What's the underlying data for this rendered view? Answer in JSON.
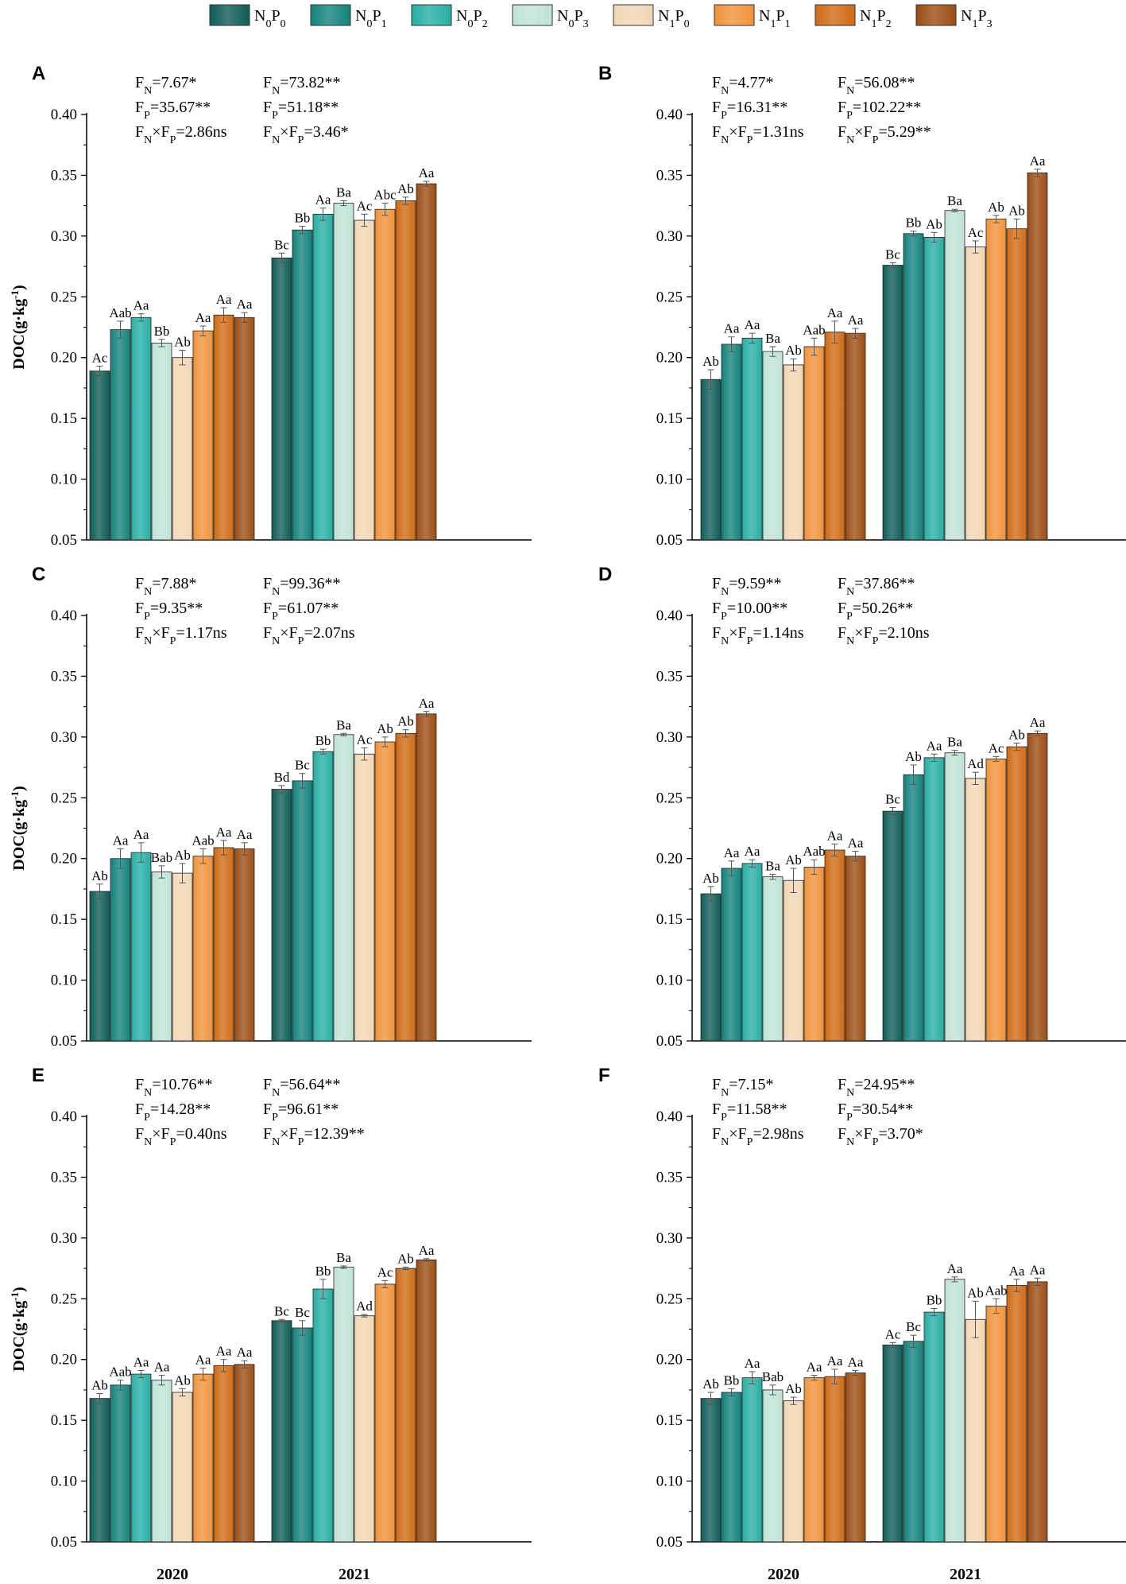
{
  "legend": [
    {
      "n": "0",
      "p": "0",
      "color": "#0f5c57"
    },
    {
      "n": "0",
      "p": "1",
      "color": "#13827c"
    },
    {
      "n": "0",
      "p": "2",
      "color": "#26aea4"
    },
    {
      "n": "0",
      "p": "3",
      "color": "#bfe3d4"
    },
    {
      "n": "1",
      "p": "0",
      "color": "#f2d6b3"
    },
    {
      "n": "1",
      "p": "1",
      "color": "#f0923a"
    },
    {
      "n": "1",
      "p": "2",
      "color": "#cf6a14"
    },
    {
      "n": "1",
      "p": "3",
      "color": "#9b4d13"
    }
  ],
  "chart_data": [
    {
      "type": "bar",
      "panel": "A",
      "ylabel": "DOC(g·kg-1)",
      "ylim": [
        0.05,
        0.4
      ],
      "yticks": [
        "0.05",
        "0.10",
        "0.15",
        "0.20",
        "0.25",
        "0.30",
        "0.35",
        "0.40"
      ],
      "categories": [
        "2020",
        "2021"
      ],
      "series_names": [
        "N0P0",
        "N0P1",
        "N0P2",
        "N0P3",
        "N1P0",
        "N1P1",
        "N1P2",
        "N1P3"
      ],
      "values": [
        [
          0.189,
          0.223,
          0.233,
          0.212,
          0.2,
          0.222,
          0.235,
          0.233
        ],
        [
          0.282,
          0.305,
          0.318,
          0.327,
          0.313,
          0.322,
          0.329,
          0.343
        ]
      ],
      "errors": [
        [
          0.004,
          0.007,
          0.003,
          0.003,
          0.006,
          0.004,
          0.006,
          0.004
        ],
        [
          0.004,
          0.003,
          0.005,
          0.002,
          0.005,
          0.005,
          0.003,
          0.002
        ]
      ],
      "sig": [
        [
          "Ac",
          "Aab",
          "Aa",
          "Bb",
          "Ab",
          "Aa",
          "Aa",
          "Aa"
        ],
        [
          "Bc",
          "Bb",
          "Aa",
          "Ba",
          "Ac",
          "Abc",
          "Ab",
          "Aa"
        ]
      ],
      "stats": [
        [
          {
            "sub": "N",
            "val": "=7.67*"
          },
          {
            "sub": "P",
            "val": "=35.67**"
          },
          {
            "sub": "N",
            "sub2": "P",
            "val": "=2.86ns"
          }
        ],
        [
          {
            "sub": "N",
            "val": "=73.82**"
          },
          {
            "sub": "P",
            "val": "=51.18**"
          },
          {
            "sub": "N",
            "sub2": "P",
            "val": "=3.46*"
          }
        ]
      ]
    },
    {
      "type": "bar",
      "panel": "B",
      "ylabel": "",
      "ylim": [
        0.05,
        0.4
      ],
      "yticks": [
        "0.05",
        "0.10",
        "0.15",
        "0.20",
        "0.25",
        "0.30",
        "0.35",
        "0.40"
      ],
      "categories": [
        "2020",
        "2021"
      ],
      "series_names": [
        "N0P0",
        "N0P1",
        "N0P2",
        "N0P3",
        "N1P0",
        "N1P1",
        "N1P2",
        "N1P3"
      ],
      "values": [
        [
          0.182,
          0.211,
          0.216,
          0.205,
          0.194,
          0.209,
          0.221,
          0.22
        ],
        [
          0.276,
          0.302,
          0.299,
          0.321,
          0.291,
          0.314,
          0.306,
          0.352
        ]
      ],
      "errors": [
        [
          0.008,
          0.006,
          0.004,
          0.004,
          0.005,
          0.007,
          0.009,
          0.004
        ],
        [
          0.002,
          0.002,
          0.004,
          0.001,
          0.005,
          0.003,
          0.008,
          0.003
        ]
      ],
      "sig": [
        [
          "Ab",
          "Aa",
          "Aa",
          "Ba",
          "Ab",
          "Aab",
          "Aa",
          "Aa"
        ],
        [
          "Bc",
          "Bb",
          "Ab",
          "Ba",
          "Ac",
          "Ab",
          "Ab",
          "Aa"
        ]
      ],
      "stats": [
        [
          {
            "sub": "N",
            "val": "=4.77*"
          },
          {
            "sub": "P",
            "val": "=16.31**"
          },
          {
            "sub": "N",
            "sub2": "P",
            "val": "=1.31ns"
          }
        ],
        [
          {
            "sub": "N",
            "val": "=56.08**"
          },
          {
            "sub": "P",
            "val": "=102.22**"
          },
          {
            "sub": "N",
            "sub2": "P",
            "val": "=5.29**"
          }
        ]
      ]
    },
    {
      "type": "bar",
      "panel": "C",
      "ylabel": "DOC(g·kg-1)",
      "ylim": [
        0.05,
        0.4
      ],
      "yticks": [
        "0.05",
        "0.10",
        "0.15",
        "0.20",
        "0.25",
        "0.30",
        "0.35",
        "0.40"
      ],
      "categories": [
        "2020",
        "2021"
      ],
      "series_names": [
        "N0P0",
        "N0P1",
        "N0P2",
        "N0P3",
        "N1P0",
        "N1P1",
        "N1P2",
        "N1P3"
      ],
      "values": [
        [
          0.173,
          0.2,
          0.205,
          0.189,
          0.188,
          0.202,
          0.209,
          0.208
        ],
        [
          0.257,
          0.264,
          0.288,
          0.302,
          0.286,
          0.296,
          0.303,
          0.319
        ]
      ],
      "errors": [
        [
          0.006,
          0.008,
          0.008,
          0.005,
          0.008,
          0.006,
          0.006,
          0.005
        ],
        [
          0.003,
          0.006,
          0.002,
          0.001,
          0.005,
          0.004,
          0.003,
          0.002
        ]
      ],
      "sig": [
        [
          "Ab",
          "Aa",
          "Aa",
          "Bab",
          "Ab",
          "Aab",
          "Aa",
          "Aa"
        ],
        [
          "Bd",
          "Bc",
          "Bb",
          "Ba",
          "Ac",
          "Ab",
          "Ab",
          "Aa"
        ]
      ],
      "stats": [
        [
          {
            "sub": "N",
            "val": "=7.88*"
          },
          {
            "sub": "P",
            "val": "=9.35**"
          },
          {
            "sub": "N",
            "sub2": "P",
            "val": "=1.17ns"
          }
        ],
        [
          {
            "sub": "N",
            "val": "=99.36**"
          },
          {
            "sub": "P",
            "val": "=61.07**"
          },
          {
            "sub": "N",
            "sub2": "P",
            "val": "=2.07ns"
          }
        ]
      ]
    },
    {
      "type": "bar",
      "panel": "D",
      "ylabel": "",
      "ylim": [
        0.05,
        0.4
      ],
      "yticks": [
        "0.05",
        "0.10",
        "0.15",
        "0.20",
        "0.25",
        "0.30",
        "0.35",
        "0.40"
      ],
      "categories": [
        "2020",
        "2021"
      ],
      "series_names": [
        "N0P0",
        "N0P1",
        "N0P2",
        "N0P3",
        "N1P0",
        "N1P1",
        "N1P2",
        "N1P3"
      ],
      "values": [
        [
          0.171,
          0.192,
          0.196,
          0.185,
          0.182,
          0.193,
          0.207,
          0.202
        ],
        [
          0.239,
          0.269,
          0.283,
          0.287,
          0.266,
          0.282,
          0.292,
          0.303
        ]
      ],
      "errors": [
        [
          0.006,
          0.006,
          0.003,
          0.002,
          0.01,
          0.006,
          0.005,
          0.004
        ],
        [
          0.003,
          0.008,
          0.003,
          0.002,
          0.005,
          0.002,
          0.003,
          0.002
        ]
      ],
      "sig": [
        [
          "Ab",
          "Aa",
          "Aa",
          "Ba",
          "Ab",
          "Aab",
          "Aa",
          "Aa"
        ],
        [
          "Bc",
          "Ab",
          "Aa",
          "Ba",
          "Ad",
          "Ac",
          "Ab",
          "Aa"
        ]
      ],
      "stats": [
        [
          {
            "sub": "N",
            "val": "=9.59**"
          },
          {
            "sub": "P",
            "val": "=10.00**"
          },
          {
            "sub": "N",
            "sub2": "P",
            "val": "=1.14ns"
          }
        ],
        [
          {
            "sub": "N",
            "val": "=37.86**"
          },
          {
            "sub": "P",
            "val": "=50.26**"
          },
          {
            "sub": "N",
            "sub2": "P",
            "val": "=2.10ns"
          }
        ]
      ]
    },
    {
      "type": "bar",
      "panel": "E",
      "ylabel": "DOC(g·kg-1)",
      "ylim": [
        0.05,
        0.4
      ],
      "yticks": [
        "0.05",
        "0.10",
        "0.15",
        "0.20",
        "0.25",
        "0.30",
        "0.35",
        "0.40"
      ],
      "categories": [
        "2020",
        "2021"
      ],
      "series_names": [
        "N0P0",
        "N0P1",
        "N0P2",
        "N0P3",
        "N1P0",
        "N1P1",
        "N1P2",
        "N1P3"
      ],
      "values": [
        [
          0.168,
          0.179,
          0.188,
          0.183,
          0.173,
          0.188,
          0.195,
          0.196
        ],
        [
          0.232,
          0.226,
          0.258,
          0.276,
          0.236,
          0.262,
          0.275,
          0.282
        ]
      ],
      "errors": [
        [
          0.004,
          0.004,
          0.003,
          0.004,
          0.003,
          0.005,
          0.005,
          0.003
        ],
        [
          0.001,
          0.006,
          0.008,
          0.001,
          0.001,
          0.003,
          0.001,
          0.001
        ]
      ],
      "sig": [
        [
          "Ab",
          "Aab",
          "Aa",
          "Aa",
          "Ab",
          "Aa",
          "Aa",
          "Aa"
        ],
        [
          "Bc",
          "Bc",
          "Bb",
          "Ba",
          "Ad",
          "Ac",
          "Ab",
          "Aa"
        ]
      ],
      "stats": [
        [
          {
            "sub": "N",
            "val": "=10.76**"
          },
          {
            "sub": "P",
            "val": "=14.28**"
          },
          {
            "sub": "N",
            "sub2": "P",
            "val": "=0.40ns"
          }
        ],
        [
          {
            "sub": "N",
            "val": "=56.64**"
          },
          {
            "sub": "P",
            "val": "=96.61**"
          },
          {
            "sub": "N",
            "sub2": "P",
            "val": "=12.39**"
          }
        ]
      ]
    },
    {
      "type": "bar",
      "panel": "F",
      "ylabel": "",
      "ylim": [
        0.05,
        0.4
      ],
      "yticks": [
        "0.05",
        "0.10",
        "0.15",
        "0.20",
        "0.25",
        "0.30",
        "0.35",
        "0.40"
      ],
      "categories": [
        "2020",
        "2021"
      ],
      "series_names": [
        "N0P0",
        "N0P1",
        "N0P2",
        "N0P3",
        "N1P0",
        "N1P1",
        "N1P2",
        "N1P3"
      ],
      "values": [
        [
          0.168,
          0.173,
          0.185,
          0.175,
          0.166,
          0.185,
          0.186,
          0.189
        ],
        [
          0.212,
          0.215,
          0.239,
          0.266,
          0.233,
          0.244,
          0.261,
          0.264
        ]
      ],
      "errors": [
        [
          0.005,
          0.003,
          0.005,
          0.004,
          0.003,
          0.002,
          0.006,
          0.002
        ],
        [
          0.002,
          0.005,
          0.003,
          0.002,
          0.015,
          0.006,
          0.005,
          0.003
        ]
      ],
      "sig": [
        [
          "Ab",
          "Bb",
          "Aa",
          "Bab",
          "Ab",
          "Aa",
          "Aa",
          "Aa"
        ],
        [
          "Ac",
          "Bc",
          "Bb",
          "Aa",
          "Ab",
          "Aab",
          "Aa",
          "Aa"
        ]
      ],
      "stats": [
        [
          {
            "sub": "N",
            "val": "=7.15*"
          },
          {
            "sub": "P",
            "val": "=11.58**"
          },
          {
            "sub": "N",
            "sub2": "P",
            "val": "=2.98ns"
          }
        ],
        [
          {
            "sub": "N",
            "val": "=24.95**"
          },
          {
            "sub": "P",
            "val": "=30.54**"
          },
          {
            "sub": "N",
            "sub2": "P",
            "val": "=3.70*"
          }
        ]
      ]
    }
  ]
}
